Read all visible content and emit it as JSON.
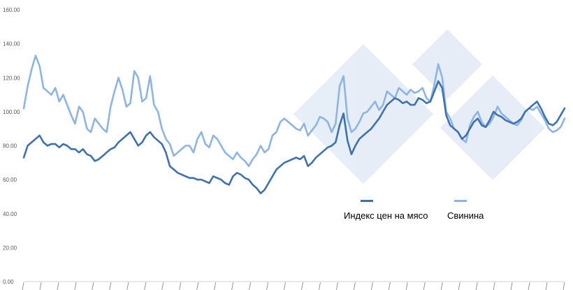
{
  "chart_data": {
    "type": "line",
    "title": "",
    "xlabel": "",
    "ylabel": "",
    "ylim": [
      0,
      160
    ],
    "y_ticks": [
      "0.00",
      "20.00",
      "40.00",
      "60.00",
      "80.00",
      "100.00",
      "120.00",
      "140.00",
      "160.00"
    ],
    "grid": false,
    "legend": "center-right",
    "series": [
      {
        "name": "Индекс цен на мясо",
        "color": "#3d71b0",
        "values": [
          73,
          80,
          82,
          84,
          86,
          82,
          80,
          81,
          81,
          79,
          81,
          80,
          78,
          78,
          76,
          78,
          75,
          74,
          71,
          72,
          74,
          76,
          78,
          79,
          82,
          84,
          86,
          88,
          84,
          80,
          82,
          86,
          88,
          85,
          83,
          81,
          76,
          68,
          66,
          64,
          63,
          62,
          61,
          61,
          60,
          60,
          59,
          58,
          62,
          61,
          60,
          58,
          57,
          62,
          64,
          63,
          61,
          60,
          57,
          55,
          52,
          54,
          58,
          62,
          66,
          68,
          70,
          71,
          72,
          73,
          72,
          74,
          68,
          70,
          73,
          75,
          77,
          79,
          80,
          82,
          92,
          99,
          83,
          75,
          80,
          84,
          86,
          88,
          90,
          93,
          96,
          100,
          104,
          106,
          108,
          107,
          105,
          106,
          104,
          104,
          108,
          107,
          105,
          106,
          112,
          118,
          114,
          98,
          92,
          90,
          88,
          84,
          86,
          90,
          94,
          96,
          92,
          91,
          95,
          100,
          98,
          97,
          95,
          94,
          93,
          94,
          96,
          100,
          102,
          104,
          106,
          102,
          97,
          93,
          92,
          94,
          98,
          102
        ]
      },
      {
        "name": "Свинина",
        "color": "#8db4e2",
        "values": [
          102,
          115,
          125,
          133,
          127,
          114,
          112,
          110,
          114,
          106,
          110,
          104,
          98,
          93,
          103,
          100,
          90,
          88,
          96,
          93,
          90,
          88,
          103,
          112,
          120,
          113,
          103,
          105,
          124,
          120,
          106,
          108,
          121,
          104,
          100,
          90,
          84,
          81,
          74,
          76,
          78,
          80,
          80,
          76,
          84,
          88,
          81,
          79,
          86,
          84,
          80,
          76,
          74,
          72,
          76,
          73,
          71,
          68,
          72,
          75,
          80,
          76,
          78,
          86,
          88,
          94,
          96,
          94,
          92,
          90,
          89,
          93,
          86,
          89,
          92,
          97,
          96,
          94,
          88,
          93,
          115,
          121,
          96,
          88,
          90,
          94,
          99,
          100,
          103,
          106,
          101,
          104,
          112,
          110,
          108,
          114,
          112,
          110,
          113,
          111,
          112,
          114,
          108,
          106,
          116,
          128,
          120,
          100,
          96,
          90,
          88,
          84,
          82,
          92,
          97,
          100,
          94,
          91,
          93,
          97,
          103,
          99,
          97,
          95,
          93,
          92,
          95,
          100,
          102,
          101,
          103,
          99,
          95,
          90,
          88,
          89,
          91,
          96
        ]
      }
    ]
  }
}
